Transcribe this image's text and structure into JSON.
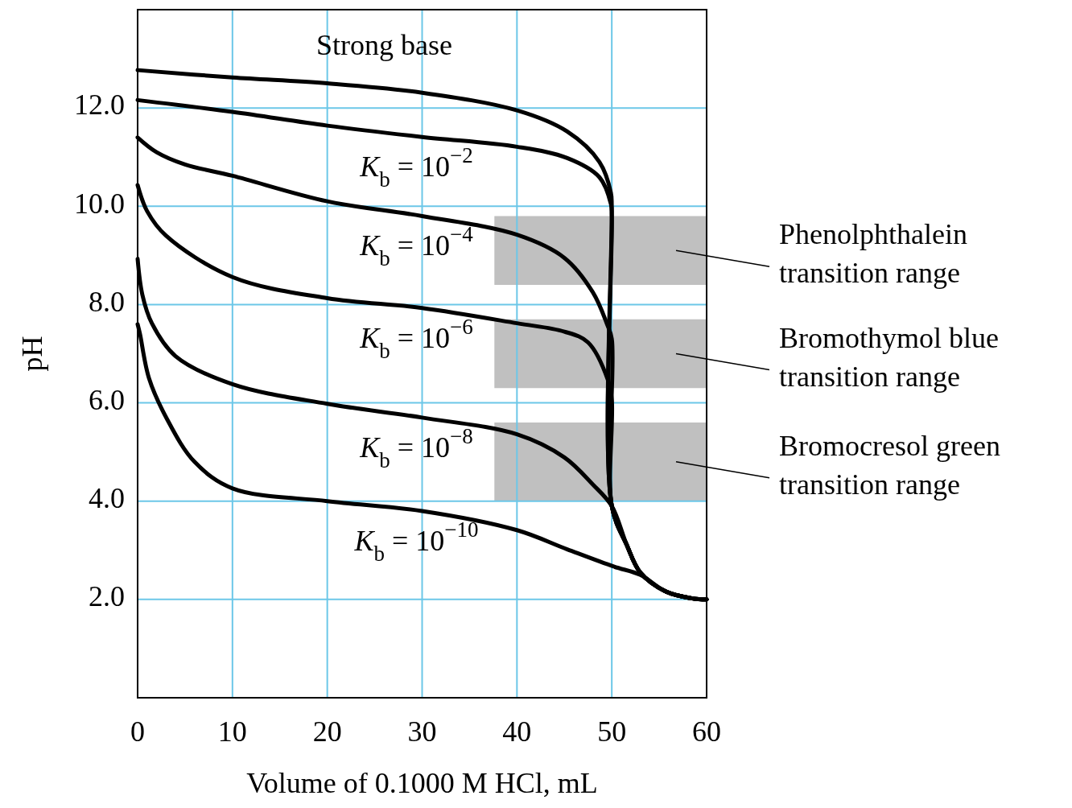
{
  "chart_data": {
    "type": "line",
    "xlabel": "Volume of 0.1000 M HCl, mL",
    "ylabel": "pH",
    "xlim": [
      0,
      60
    ],
    "xticks": [
      0,
      10,
      20,
      30,
      40,
      50,
      60
    ],
    "ylim": [
      0,
      14
    ],
    "yticks": [
      {
        "value": 2,
        "label": "2.0"
      },
      {
        "value": 4,
        "label": "4.0"
      },
      {
        "value": 6,
        "label": "6.0"
      },
      {
        "value": 8,
        "label": "8.0"
      },
      {
        "value": 10,
        "label": "10.0"
      },
      {
        "value": 12,
        "label": "12.0"
      }
    ],
    "grid": true,
    "marker": "none",
    "line_style": "solid",
    "series": [
      {
        "name": "Strong base",
        "color": "#000000",
        "x": [
          0,
          10,
          20,
          30,
          40,
          45.3,
          48.7,
          49.9,
          50,
          50,
          51.6,
          53,
          55.7,
          58.5,
          60
        ],
        "values": [
          12.77,
          12.62,
          12.5,
          12.31,
          11.95,
          11.52,
          10.9,
          10.28,
          10,
          3.9,
          3.1,
          2.55,
          2.16,
          2.02,
          2.0
        ]
      },
      {
        "name": "K$_{b}$ = 10$^{−2}$",
        "color": "#000000",
        "x": [
          0,
          10,
          20,
          30,
          40,
          45.3,
          48.7,
          49.9,
          50,
          50,
          51.6,
          53,
          55.7,
          58.5,
          60
        ],
        "values": [
          12.16,
          11.92,
          11.64,
          11.41,
          11.21,
          10.98,
          10.59,
          10.05,
          9.8,
          3.9,
          3.1,
          2.55,
          2.16,
          2.02,
          2.0
        ]
      },
      {
        "name": "K$_{b}$ = 10$^{−4}$",
        "color": "#000000",
        "x": [
          0,
          2,
          5,
          10,
          20,
          30,
          40,
          45,
          48,
          49.5,
          50,
          50,
          51.6,
          53,
          55.7,
          58.5,
          60
        ],
        "values": [
          11.4,
          11.1,
          10.85,
          10.62,
          10.1,
          9.8,
          9.42,
          8.95,
          8.25,
          7.6,
          7.3,
          3.9,
          3.1,
          2.55,
          2.16,
          2.02,
          2.0
        ]
      },
      {
        "name": "K$_{b}$ = 10$^{−6}$",
        "color": "#000000",
        "x": [
          0,
          1,
          3,
          10,
          20,
          30,
          40,
          45,
          47.5,
          49.6,
          50,
          50,
          51.6,
          53,
          55.7,
          58.5,
          60
        ],
        "values": [
          10.43,
          9.9,
          9.4,
          8.56,
          8.13,
          7.93,
          7.62,
          7.45,
          7.23,
          6.46,
          6.07,
          3.9,
          3.1,
          2.55,
          2.16,
          2.02,
          2.0
        ]
      },
      {
        "name": "K$_{b}$ = 10$^{−8}$",
        "color": "#000000",
        "x": [
          0,
          0.5,
          1.5,
          4,
          10,
          20,
          30,
          40,
          45,
          48,
          50,
          51.6,
          53,
          55.7,
          58.5,
          60
        ],
        "values": [
          8.93,
          8.2,
          7.62,
          6.95,
          6.38,
          5.98,
          5.7,
          5.36,
          4.89,
          4.34,
          3.9,
          3.1,
          2.55,
          2.16,
          2.02,
          2.0
        ]
      },
      {
        "name": "K$_{b}$ = 10$^{−10}$",
        "color": "#000000",
        "x": [
          0,
          0.25,
          1.2,
          3.1,
          6,
          10,
          20,
          30,
          40,
          45.3,
          50.2,
          53,
          55.7,
          58.5,
          60
        ],
        "values": [
          7.6,
          7.4,
          6.5,
          5.67,
          4.8,
          4.26,
          4.0,
          3.8,
          3.41,
          3.02,
          2.67,
          2.5,
          2.16,
          2.02,
          2.0
        ]
      }
    ],
    "bands": [
      {
        "axis": "y",
        "from": 8.4,
        "to": 9.8,
        "label": "Phenolphthalein transition range",
        "color": "#c0c0c0"
      },
      {
        "axis": "y",
        "from": 6.3,
        "to": 7.7,
        "label": "Bromothymol blue transition range",
        "color": "#c0c0c0"
      },
      {
        "axis": "y",
        "from": 4.0,
        "to": 5.6,
        "label": "Bromocresol green transition range",
        "color": "#c0c0c0"
      }
    ]
  }
}
